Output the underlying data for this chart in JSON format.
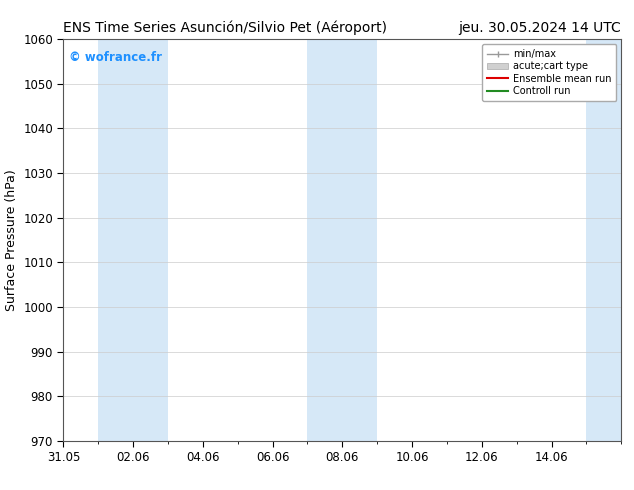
{
  "title_left": "ENS Time Series Asunción/Silvio Pet (Aéroport)",
  "title_right": "jeu. 30.05.2024 14 UTC",
  "ylabel": "Surface Pressure (hPa)",
  "ylim": [
    970,
    1060
  ],
  "yticks": [
    970,
    980,
    990,
    1000,
    1010,
    1020,
    1030,
    1040,
    1050,
    1060
  ],
  "xlim_start": 0,
  "xlim_end": 16,
  "xtick_labels": [
    "31.05",
    "02.06",
    "04.06",
    "06.06",
    "08.06",
    "10.06",
    "12.06",
    "14.06"
  ],
  "xtick_positions": [
    0,
    2,
    4,
    6,
    8,
    10,
    12,
    14
  ],
  "shade_bands": [
    {
      "x_start": 1,
      "x_end": 3
    },
    {
      "x_start": 7,
      "x_end": 9
    },
    {
      "x_start": 15,
      "x_end": 16
    }
  ],
  "shade_color": "#d6e8f7",
  "background_color": "#ffffff",
  "plot_bg_color": "#ffffff",
  "watermark_text": "© wofrance.fr",
  "watermark_color": "#1e90ff",
  "legend_items": [
    {
      "label": "min/max",
      "color": "#aaaaaa",
      "lw": 1,
      "style": "errorbar"
    },
    {
      "label": "acute;cart type",
      "color": "#cccccc",
      "lw": 5,
      "style": "thick"
    },
    {
      "label": "Ensemble mean run",
      "color": "#cc0000",
      "lw": 1.2,
      "style": "line"
    },
    {
      "label": "Controll run",
      "color": "#006600",
      "lw": 1.2,
      "style": "line"
    }
  ],
  "title_fontsize": 10,
  "tick_fontsize": 8.5,
  "ylabel_fontsize": 9,
  "fig_width": 6.34,
  "fig_height": 4.9,
  "dpi": 100
}
